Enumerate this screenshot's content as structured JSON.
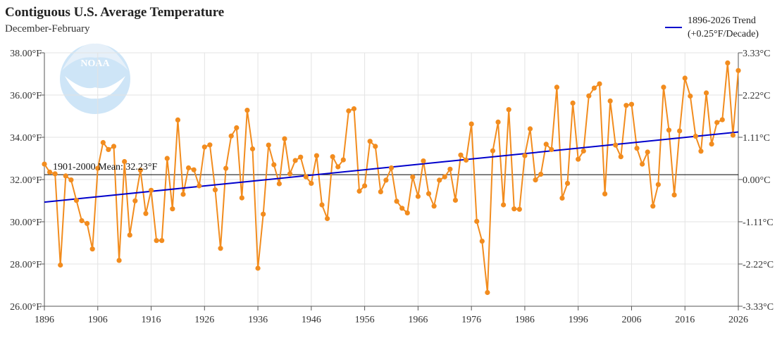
{
  "chart_data": {
    "type": "line",
    "title": "Contiguous U.S. Average Temperature",
    "subtitle": "December-February",
    "ylabel": "°F",
    "ylabel_right": "°C",
    "xlim": [
      1896,
      2026
    ],
    "ylim": [
      26.0,
      38.0
    ],
    "x_ticks": [
      1896,
      1906,
      1916,
      1926,
      1936,
      1946,
      1956,
      1966,
      1976,
      1986,
      1996,
      2006,
      2016,
      2026
    ],
    "y_ticks": [
      {
        "value": 26,
        "label": "26.00°F"
      },
      {
        "value": 28,
        "label": "28.00°F"
      },
      {
        "value": 30,
        "label": "30.00°F"
      },
      {
        "value": 32,
        "label": "32.00°F"
      },
      {
        "value": 34,
        "label": "34.00°F"
      },
      {
        "value": 36,
        "label": "36.00°F"
      },
      {
        "value": 38,
        "label": "38.00°F"
      }
    ],
    "y_ticks_right": [
      {
        "value": 38.0,
        "label": "3.33°C"
      },
      {
        "value": 36.0,
        "label": "2.22°C"
      },
      {
        "value": 34.0,
        "label": "1.11°C"
      },
      {
        "value": 32.0,
        "label": "0.00°C"
      },
      {
        "value": 30.0,
        "label": "-1.11°C"
      },
      {
        "value": 28.0,
        "label": "-2.22°C"
      },
      {
        "value": 26.0,
        "label": "-3.33°C"
      }
    ],
    "mean": {
      "value": 32.23,
      "label": "1901-2000 Mean: 32.23°F"
    },
    "trend": {
      "name": "1896-2026 Trend",
      "rate": "(+0.25°F/Decade)",
      "start": [
        1896,
        30.93
      ],
      "end": [
        2026,
        34.25
      ]
    },
    "series": [
      {
        "name": "Temperature",
        "x": [
          1896,
          1897,
          1898,
          1899,
          1900,
          1901,
          1902,
          1903,
          1904,
          1905,
          1906,
          1907,
          1908,
          1909,
          1910,
          1911,
          1912,
          1913,
          1914,
          1915,
          1916,
          1917,
          1918,
          1919,
          1920,
          1921,
          1922,
          1923,
          1924,
          1925,
          1926,
          1927,
          1928,
          1929,
          1930,
          1931,
          1932,
          1933,
          1934,
          1935,
          1936,
          1937,
          1938,
          1939,
          1940,
          1941,
          1942,
          1943,
          1944,
          1945,
          1946,
          1947,
          1948,
          1949,
          1950,
          1951,
          1952,
          1953,
          1954,
          1955,
          1956,
          1957,
          1958,
          1959,
          1960,
          1961,
          1962,
          1963,
          1964,
          1965,
          1966,
          1967,
          1968,
          1969,
          1970,
          1971,
          1972,
          1973,
          1974,
          1975,
          1976,
          1977,
          1978,
          1979,
          1980,
          1981,
          1982,
          1983,
          1984,
          1985,
          1986,
          1987,
          1988,
          1989,
          1990,
          1991,
          1992,
          1993,
          1994,
          1995,
          1996,
          1997,
          1998,
          1999,
          2000,
          2001,
          2002,
          2003,
          2004,
          2005,
          2006,
          2007,
          2008,
          2009,
          2010,
          2011,
          2012,
          2013,
          2014,
          2015,
          2016,
          2017,
          2018,
          2019,
          2020,
          2021,
          2022,
          2023,
          2024,
          2025,
          2026
        ],
        "values": [
          32.73,
          32.35,
          32.27,
          27.95,
          32.17,
          31.98,
          31.01,
          30.05,
          29.92,
          28.71,
          32.53,
          33.75,
          33.42,
          33.57,
          28.17,
          32.85,
          29.37,
          30.99,
          32.44,
          30.39,
          31.49,
          29.11,
          29.11,
          33.0,
          30.61,
          34.82,
          31.3,
          32.55,
          32.46,
          31.7,
          33.54,
          33.64,
          31.51,
          28.74,
          32.53,
          34.06,
          34.45,
          31.13,
          35.28,
          33.45,
          27.8,
          30.36,
          33.63,
          32.7,
          31.8,
          33.93,
          32.27,
          32.9,
          33.06,
          32.13,
          31.82,
          33.13,
          30.8,
          30.15,
          33.08,
          32.6,
          32.93,
          35.25,
          35.35,
          31.45,
          31.7,
          33.81,
          33.57,
          31.42,
          31.97,
          32.55,
          30.97,
          30.64,
          30.42,
          32.12,
          31.2,
          32.88,
          31.33,
          30.74,
          31.97,
          32.13,
          32.49,
          31.02,
          33.16,
          32.92,
          34.63,
          30.02,
          29.08,
          26.65,
          33.36,
          34.72,
          30.8,
          35.31,
          30.61,
          30.59,
          33.13,
          34.4,
          31.98,
          32.25,
          33.67,
          33.42,
          36.37,
          31.12,
          31.82,
          35.62,
          32.96,
          33.35,
          35.96,
          36.33,
          36.53,
          31.32,
          35.72,
          33.63,
          33.08,
          35.51,
          35.56,
          33.48,
          32.73,
          33.3,
          30.74,
          31.76,
          36.37,
          34.34,
          31.27,
          34.3,
          36.8,
          35.95,
          34.05,
          33.34,
          36.1,
          33.68,
          34.7,
          34.83,
          37.52,
          34.1,
          37.16
        ]
      }
    ],
    "colors": {
      "series": "#f28c1e",
      "trend": "#0000cc",
      "mean": "#000000",
      "grid": "#e3e3e3",
      "axis": "#555555"
    }
  }
}
